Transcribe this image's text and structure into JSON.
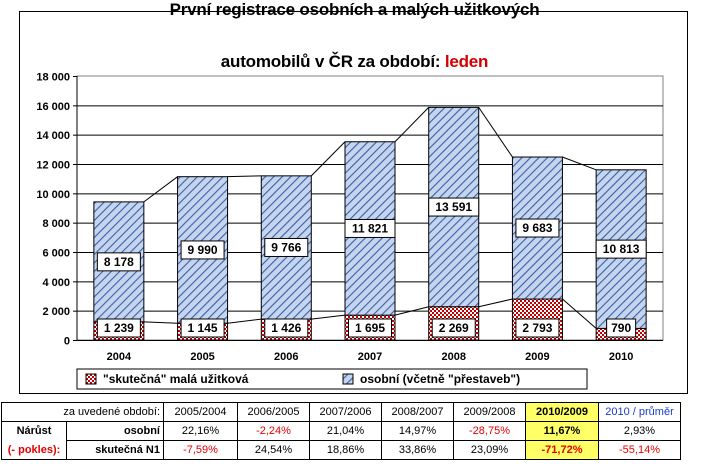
{
  "title": {
    "line1": "První registrace osobních a malých užitkových",
    "line2_prefix": "automobilů v ČR za období:",
    "period": "leden"
  },
  "colors": {
    "osobni_fill": "#c5d5ee",
    "osobni_hatch": "#3b5ea8",
    "uzitkova_fill": "#ffffff",
    "uzitkova_hatch": "#c00000",
    "highlight": "#ffff66",
    "negative": "#e60000",
    "blue_text": "#1a3ccc"
  },
  "chart_data": {
    "type": "bar",
    "stacked": true,
    "categories": [
      "2004",
      "2005",
      "2006",
      "2007",
      "2008",
      "2009",
      "2010"
    ],
    "series": [
      {
        "name": "\"skutečná\" malá užitková",
        "values": [
          1239,
          1145,
          1426,
          1695,
          2269,
          2793,
          790
        ]
      },
      {
        "name": "osobní (včetně \"přestaveb\")",
        "values": [
          8178,
          9990,
          9766,
          11821,
          13591,
          9683,
          10813
        ]
      }
    ],
    "value_labels_uzitkova": [
      "1 239",
      "1 145",
      "1 426",
      "1 695",
      "2 269",
      "2 793",
      "790"
    ],
    "value_labels_osobni": [
      "8 178",
      "9 990",
      "9 766",
      "11 821",
      "13 591",
      "9 683",
      "10 813"
    ],
    "ylim": [
      0,
      18000
    ],
    "yticks": [
      0,
      2000,
      4000,
      6000,
      8000,
      10000,
      12000,
      14000,
      16000,
      18000
    ],
    "ytick_labels": [
      "0",
      "2 000",
      "4 000",
      "6 000",
      "8 000",
      "10 000",
      "12 000",
      "14 000",
      "16 000",
      "18 000"
    ],
    "grid": true,
    "connector_lines": true,
    "legend_position": "bottom",
    "xlabel": "",
    "ylabel": ""
  },
  "table": {
    "header_label": "za uvedené období:",
    "columns": [
      "2005/2004",
      "2006/2005",
      "2007/2006",
      "2008/2007",
      "2009/2008",
      "2010/2009",
      "2010 / průměr"
    ],
    "row_title_top": "Nárůst",
    "row_title_bottom": "(- pokles):",
    "rows": [
      {
        "label": "osobní",
        "values": [
          "22,16%",
          "-2,24%",
          "21,04%",
          "14,97%",
          "-28,75%",
          "11,67%",
          "2,93%"
        ]
      },
      {
        "label": "skutečná N1",
        "values": [
          "-7,59%",
          "24,54%",
          "18,86%",
          "33,86%",
          "23,09%",
          "-71,72%",
          "-55,14%"
        ]
      }
    ]
  }
}
